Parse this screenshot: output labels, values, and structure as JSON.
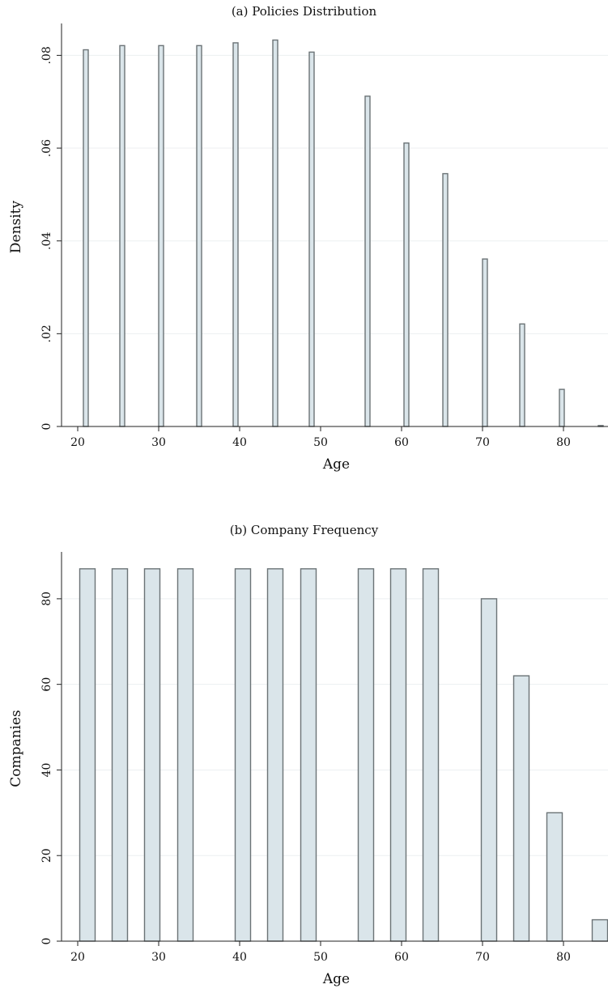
{
  "chart_data": [
    {
      "type": "bar",
      "title": "(a) Policies Distribution",
      "xlabel": "Age",
      "ylabel": "Density",
      "xlim": [
        18,
        85.5
      ],
      "ylim": [
        0,
        0.086
      ],
      "xticks": [
        20,
        30,
        40,
        50,
        60,
        70,
        80
      ],
      "yticks": [
        0,
        0.02,
        0.04,
        0.06,
        0.08
      ],
      "ytick_labels": [
        "0",
        ".02",
        ".04",
        ".06",
        ".08"
      ],
      "bar_width": 0.6,
      "x": [
        21,
        25.5,
        30.3,
        35,
        39.5,
        44.4,
        48.9,
        55.8,
        60.6,
        65.4,
        70.3,
        74.9,
        79.8,
        84.6
      ],
      "values": [
        0.0812,
        0.0821,
        0.0821,
        0.0821,
        0.0827,
        0.0833,
        0.0807,
        0.0712,
        0.0611,
        0.0545,
        0.0361,
        0.0221,
        0.008,
        0.0002
      ],
      "grid": true
    },
    {
      "type": "bar",
      "title": "(b) Company Frequency",
      "xlabel": "Age",
      "ylabel": "Companies",
      "xlim": [
        18,
        85.5
      ],
      "ylim": [
        0,
        90
      ],
      "xticks": [
        20,
        30,
        40,
        50,
        60,
        70,
        80
      ],
      "yticks": [
        0,
        20,
        40,
        60,
        80
      ],
      "ytick_labels": [
        "0",
        "20",
        "40",
        "60",
        "80"
      ],
      "bar_width": 1.9,
      "x": [
        21.2,
        25.2,
        29.2,
        33.3,
        40.4,
        44.4,
        48.5,
        55.6,
        59.6,
        63.6,
        70.8,
        74.8,
        78.9,
        84.5
      ],
      "values": [
        87,
        87,
        87,
        87,
        87,
        87,
        87,
        87,
        87,
        87,
        80,
        62,
        30,
        5
      ],
      "grid": true
    }
  ]
}
